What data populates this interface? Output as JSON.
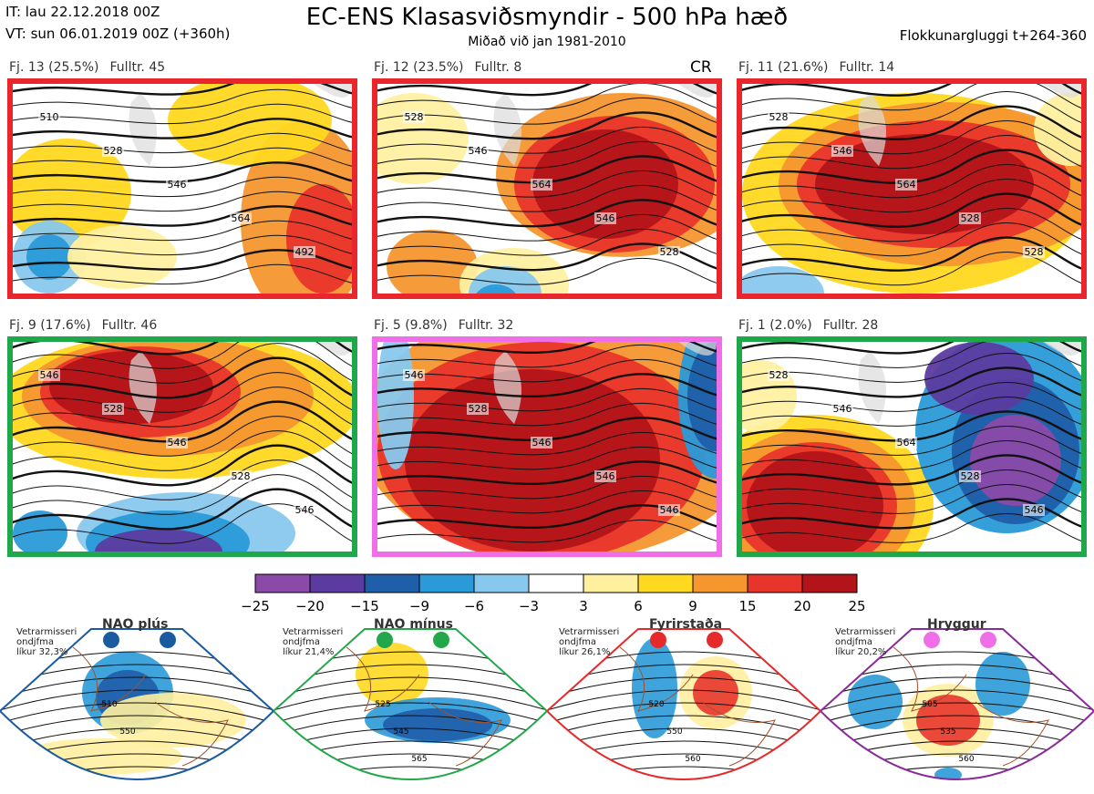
{
  "header": {
    "init_time": "IT: lau 22.12.2018 00Z",
    "valid_time": "VT: sun 06.01.2019 00Z  (+360h)",
    "title": "EC-ENS Klasasviðsmyndir - 500 hPa hæð",
    "subtitle": "Miðað við jan 1981-2010",
    "window": "Flokkunargluggi t+264-360"
  },
  "clusters": [
    {
      "label": "Fj. 13 (25.5%)",
      "members": "Fulltr. 45",
      "frame": "#e8262b",
      "contours": [
        "510",
        "528",
        "546",
        "564",
        "492"
      ]
    },
    {
      "label": "Fj. 12 (23.5%)",
      "members": "Fulltr. 8",
      "frame": "#e8262b",
      "contours": [
        "528",
        "546",
        "564",
        "546",
        "528"
      ],
      "extra": "CR"
    },
    {
      "label": "Fj. 11 (21.6%)",
      "members": "Fulltr. 14",
      "frame": "#e8262b",
      "contours": [
        "528",
        "546",
        "564",
        "528",
        "528"
      ]
    },
    {
      "label": "Fj. 9 (17.6%)",
      "members": "Fulltr. 46",
      "frame": "#1fa84a",
      "contours": [
        "546",
        "528",
        "546",
        "528",
        "546"
      ]
    },
    {
      "label": "Fj. 5 (9.8%)",
      "members": "Fulltr. 32",
      "frame": "#f06fe8",
      "contours": [
        "546",
        "528",
        "546",
        "546",
        "546"
      ]
    },
    {
      "label": "Fj. 1 (2.0%)",
      "members": "Fulltr. 28",
      "frame": "#1fa84a",
      "contours": [
        "528",
        "546",
        "564",
        "528",
        "546"
      ]
    }
  ],
  "colorbar": {
    "ticks": [
      "−25",
      "−20",
      "−15",
      "−9",
      "−6",
      "−3",
      "3",
      "6",
      "9",
      "15",
      "20",
      "25"
    ],
    "colors": [
      "#8b4aa8",
      "#5c3ba0",
      "#1f5ea8",
      "#2a9ad8",
      "#88c8ee",
      "#ffffff",
      "#fff0a0",
      "#ffd820",
      "#f5962e",
      "#e8352b",
      "#b31419"
    ]
  },
  "regimes": [
    {
      "title": "NAO plús",
      "note": "Vetrarmisseri\nondjfma\nlíkur 32,3%",
      "edge": "#1a5aa0",
      "dot": "#1a5aa0",
      "contours": [
        "510",
        "550"
      ]
    },
    {
      "title": "NAO mínus",
      "note": "Vetrarmisseri\nondjfma\nlíkur 21,4%",
      "edge": "#22a84a",
      "dot": "#22a84a",
      "contours": [
        "525",
        "545",
        "565"
      ]
    },
    {
      "title": "Fyrirstaða",
      "note": "Vetrarmisseri\nondjfma\nlíkur 26,1%",
      "edge": "#e62a2a",
      "dot": "#e62a2a",
      "contours": [
        "520",
        "550",
        "560"
      ]
    },
    {
      "title": "Hryggur",
      "note": "Vetrarmisseri\nondjfma\nlíkur 20,2%",
      "edge": "#8a2a9a",
      "dot": "#f06fe8",
      "contours": [
        "505",
        "535",
        "560"
      ]
    }
  ],
  "chart_data": [
    {
      "type": "heatmap",
      "title": "EC-ENS Klasasviðsmyndir - 500 hPa hæð",
      "subtitle": "Miðað við jan 1981-2010",
      "series": [
        {
          "name": "Fj. 13",
          "share_pct": 25.5,
          "representative": 45
        },
        {
          "name": "Fj. 12",
          "share_pct": 23.5,
          "representative": 8
        },
        {
          "name": "Fj. 11",
          "share_pct": 21.6,
          "representative": 14
        },
        {
          "name": "Fj. 9",
          "share_pct": 17.6,
          "representative": 46
        },
        {
          "name": "Fj. 5",
          "share_pct": 9.8,
          "representative": 32
        },
        {
          "name": "Fj. 1",
          "share_pct": 2.0,
          "representative": 28
        }
      ],
      "colorscale_bounds": [
        -25,
        -20,
        -15,
        -9,
        -6,
        -3,
        3,
        6,
        9,
        15,
        20,
        25
      ]
    },
    {
      "type": "heatmap",
      "series": [
        {
          "name": "NAO plús",
          "probability_pct": 32.3
        },
        {
          "name": "NAO mínus",
          "probability_pct": 21.4
        },
        {
          "name": "Fyrirstaða",
          "probability_pct": 26.1
        },
        {
          "name": "Hryggur",
          "probability_pct": 20.2
        }
      ]
    }
  ]
}
